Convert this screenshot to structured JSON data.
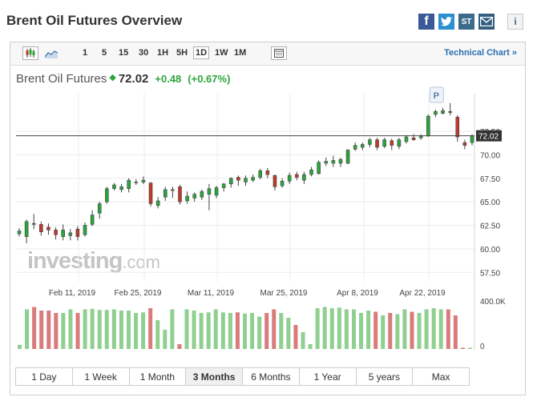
{
  "page": {
    "title": "Brent Oil Futures Overview"
  },
  "share": {
    "facebook": "f",
    "twitter": "t",
    "stocktwits": "ST",
    "info": "i"
  },
  "toolbar": {
    "timeframes": [
      "1",
      "5",
      "15",
      "30",
      "1H",
      "5H",
      "1D",
      "1W",
      "1M"
    ],
    "active_timeframe": "1D",
    "technical_link": "Technical Chart »"
  },
  "quote": {
    "name": "Brent Oil Futures",
    "price": "72.02",
    "change": "+0.48",
    "change_pct": "(+0.67%)"
  },
  "watermark": {
    "brand": "investing",
    "suffix": ".com"
  },
  "range_buttons": [
    "1 Day",
    "1 Week",
    "1 Month",
    "3 Months",
    "6 Months",
    "1 Year",
    "5 years",
    "Max"
  ],
  "active_range": "3 Months",
  "colors": {
    "up": "#2aa53b",
    "down": "#c0392b",
    "vol_up": "#8fcf8f",
    "vol_down": "#d97b7b"
  },
  "chart_data": {
    "type": "candlestick",
    "x_labels": [
      "Feb 11, 2019",
      "Feb 25, 2019",
      "Mar 11, 2019",
      "Mar 25, 2019",
      "Apr 8, 2019",
      "Apr 22, 2019"
    ],
    "y_ticks": [
      "72.50",
      "70.00",
      "67.50",
      "65.00",
      "62.50",
      "60.00",
      "57.50"
    ],
    "ylim": [
      56.5,
      76.5
    ],
    "last_price": "72.02",
    "marker": "P",
    "volume_labels": [
      "400.0K",
      "0"
    ],
    "candles": [
      {
        "o": 61.6,
        "c": 61.9,
        "h": 62.2,
        "l": 61.3
      },
      {
        "o": 61.3,
        "c": 62.9,
        "h": 63.1,
        "l": 60.6
      },
      {
        "o": 62.7,
        "c": 62.6,
        "h": 63.7,
        "l": 62.1
      },
      {
        "o": 62.6,
        "c": 61.8,
        "h": 62.9,
        "l": 61.4
      },
      {
        "o": 62.3,
        "c": 62.0,
        "h": 62.7,
        "l": 61.5
      },
      {
        "o": 62.0,
        "c": 61.5,
        "h": 62.3,
        "l": 61.0
      },
      {
        "o": 61.3,
        "c": 62.0,
        "h": 62.6,
        "l": 60.9
      },
      {
        "o": 61.4,
        "c": 61.7,
        "h": 62.1,
        "l": 60.9
      },
      {
        "o": 62.1,
        "c": 61.3,
        "h": 62.4,
        "l": 60.9
      },
      {
        "o": 61.5,
        "c": 62.5,
        "h": 62.8,
        "l": 61.3
      },
      {
        "o": 62.6,
        "c": 63.6,
        "h": 64.1,
        "l": 62.4
      },
      {
        "o": 63.8,
        "c": 64.8,
        "h": 65.0,
        "l": 63.2
      },
      {
        "o": 65.0,
        "c": 66.4,
        "h": 66.6,
        "l": 64.8
      },
      {
        "o": 66.4,
        "c": 66.8,
        "h": 67.0,
        "l": 66.2
      },
      {
        "o": 66.3,
        "c": 66.6,
        "h": 66.9,
        "l": 66.0
      },
      {
        "o": 66.4,
        "c": 67.3,
        "h": 67.5,
        "l": 66.0
      },
      {
        "o": 67.1,
        "c": 67.1,
        "h": 67.4,
        "l": 66.8
      },
      {
        "o": 67.1,
        "c": 67.3,
        "h": 67.7,
        "l": 66.9
      },
      {
        "o": 67.0,
        "c": 64.8,
        "h": 67.1,
        "l": 64.5
      },
      {
        "o": 64.6,
        "c": 65.1,
        "h": 65.5,
        "l": 64.3
      },
      {
        "o": 65.5,
        "c": 66.3,
        "h": 66.6,
        "l": 65.1
      },
      {
        "o": 66.2,
        "c": 66.3,
        "h": 66.6,
        "l": 65.4
      },
      {
        "o": 66.6,
        "c": 65.0,
        "h": 66.8,
        "l": 64.7
      },
      {
        "o": 65.1,
        "c": 65.6,
        "h": 66.1,
        "l": 64.8
      },
      {
        "o": 65.4,
        "c": 65.8,
        "h": 66.0,
        "l": 65.0
      },
      {
        "o": 65.5,
        "c": 66.1,
        "h": 66.3,
        "l": 65.2
      },
      {
        "o": 65.8,
        "c": 66.4,
        "h": 66.9,
        "l": 64.1
      },
      {
        "o": 65.7,
        "c": 66.5,
        "h": 66.7,
        "l": 65.4
      },
      {
        "o": 66.5,
        "c": 66.9,
        "h": 67.0,
        "l": 66.1
      },
      {
        "o": 66.9,
        "c": 67.5,
        "h": 67.6,
        "l": 66.5
      },
      {
        "o": 67.6,
        "c": 67.3,
        "h": 67.8,
        "l": 66.7
      },
      {
        "o": 67.1,
        "c": 67.5,
        "h": 67.8,
        "l": 66.7
      },
      {
        "o": 67.3,
        "c": 67.6,
        "h": 67.9,
        "l": 67.1
      },
      {
        "o": 67.6,
        "c": 68.3,
        "h": 68.5,
        "l": 67.4
      },
      {
        "o": 68.3,
        "c": 67.9,
        "h": 68.6,
        "l": 67.5
      },
      {
        "o": 67.8,
        "c": 66.6,
        "h": 67.9,
        "l": 66.2
      },
      {
        "o": 66.7,
        "c": 67.2,
        "h": 67.5,
        "l": 66.5
      },
      {
        "o": 67.2,
        "c": 67.8,
        "h": 68.1,
        "l": 66.9
      },
      {
        "o": 67.9,
        "c": 67.6,
        "h": 68.2,
        "l": 67.3
      },
      {
        "o": 67.3,
        "c": 67.9,
        "h": 68.2,
        "l": 66.9
      },
      {
        "o": 67.9,
        "c": 68.4,
        "h": 68.7,
        "l": 67.7
      },
      {
        "o": 68.0,
        "c": 69.2,
        "h": 69.4,
        "l": 67.9
      },
      {
        "o": 69.1,
        "c": 69.3,
        "h": 69.7,
        "l": 68.8
      },
      {
        "o": 69.1,
        "c": 69.4,
        "h": 69.9,
        "l": 68.7
      },
      {
        "o": 69.1,
        "c": 69.5,
        "h": 69.7,
        "l": 68.7
      },
      {
        "o": 69.1,
        "c": 70.5,
        "h": 70.6,
        "l": 69.0
      },
      {
        "o": 70.6,
        "c": 71.0,
        "h": 71.3,
        "l": 70.4
      },
      {
        "o": 70.8,
        "c": 71.1,
        "h": 71.3,
        "l": 70.5
      },
      {
        "o": 71.1,
        "c": 71.6,
        "h": 71.8,
        "l": 70.8
      },
      {
        "o": 71.6,
        "c": 70.8,
        "h": 71.8,
        "l": 70.5
      },
      {
        "o": 70.9,
        "c": 71.6,
        "h": 71.8,
        "l": 70.7
      },
      {
        "o": 71.5,
        "c": 71.0,
        "h": 71.7,
        "l": 70.5
      },
      {
        "o": 70.9,
        "c": 71.6,
        "h": 71.8,
        "l": 70.6
      },
      {
        "o": 71.4,
        "c": 71.9,
        "h": 72.1,
        "l": 71.2
      },
      {
        "o": 71.8,
        "c": 71.6,
        "h": 72.2,
        "l": 71.5
      },
      {
        "o": 71.8,
        "c": 72.0,
        "h": 72.2,
        "l": 71.6
      },
      {
        "o": 72.0,
        "c": 74.1,
        "h": 74.3,
        "l": 71.9
      },
      {
        "o": 74.3,
        "c": 74.6,
        "h": 74.8,
        "l": 74.0
      },
      {
        "o": 74.4,
        "c": 74.7,
        "h": 75.0,
        "l": 74.3
      },
      {
        "o": 74.6,
        "c": 74.5,
        "h": 75.5,
        "l": 74.2
      },
      {
        "o": 74.0,
        "c": 71.9,
        "h": 74.2,
        "l": 71.4
      },
      {
        "o": 71.3,
        "c": 71.0,
        "h": 71.6,
        "l": 70.6
      },
      {
        "o": 71.3,
        "c": 72.02,
        "h": 72.2,
        "l": 71.0
      }
    ],
    "volumes": [
      35,
      330,
      350,
      320,
      320,
      300,
      300,
      330,
      300,
      330,
      335,
      325,
      325,
      330,
      320,
      320,
      300,
      305,
      340,
      240,
      160,
      330,
      40,
      330,
      320,
      300,
      305,
      330,
      305,
      300,
      305,
      295,
      300,
      270,
      300,
      330,
      300,
      260,
      200,
      140,
      40,
      340,
      350,
      340,
      345,
      330,
      330,
      300,
      320,
      310,
      280,
      300,
      290,
      330,
      310,
      300,
      330,
      340,
      330,
      330,
      280,
      10,
      10
    ]
  }
}
